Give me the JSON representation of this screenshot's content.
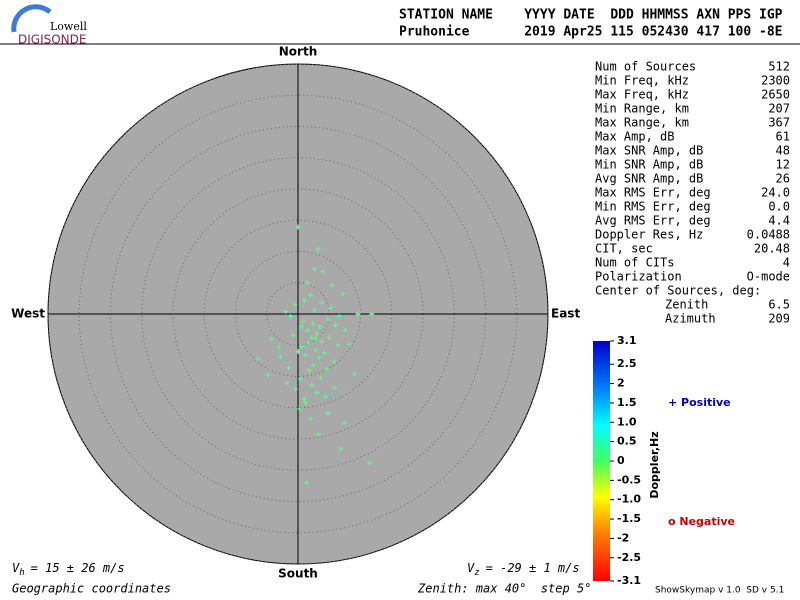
{
  "logo": {
    "top": "Lowell",
    "bottom": "DIGISONDE"
  },
  "header": {
    "line1": "STATION NAME    YYYY DATE  DDD HHMMSS AXN PPS IGP",
    "line2": "Pruhonice       2019 Apr25 115 052430 417 100 -8E"
  },
  "stats": [
    [
      "Num of Sources",
      "512"
    ],
    [
      "Min Freq, kHz",
      "2300"
    ],
    [
      "Max Freq, kHz",
      "2650"
    ],
    [
      "Min Range, km",
      "207"
    ],
    [
      "Max Range, km",
      "367"
    ],
    [
      "Max Amp, dB",
      "61"
    ],
    [
      "Max SNR Amp, dB",
      "48"
    ],
    [
      "Min SNR Amp, dB",
      "12"
    ],
    [
      "Avg SNR Amp, dB",
      "26"
    ],
    [
      "Max RMS Err, deg",
      "24.0"
    ],
    [
      "Min RMS Err, deg",
      "0.0"
    ],
    [
      "Avg RMS Err, deg",
      "4.4"
    ],
    [
      "Doppler Res, Hz",
      "0.0488"
    ],
    [
      "CIT, sec",
      "20.48"
    ],
    [
      "Num of CITs",
      "4"
    ],
    [
      "Polarization",
      "O-mode"
    ]
  ],
  "center": {
    "title": "Center of Sources, deg:",
    "rows": [
      [
        "Zenith",
        "6.5"
      ],
      [
        "Azimuth",
        "209"
      ]
    ]
  },
  "legend": {
    "positive": "+ Positive",
    "negative": "o Negative"
  },
  "footer": {
    "vh": {
      "symbol": "V",
      "sub": "h",
      "text": "= 15 ± 26 m/s"
    },
    "vz": {
      "symbol": "V",
      "sub": "z",
      "text": "= -29 ± 1 m/s"
    },
    "coords": "Geographic coordinates",
    "zenith": "Zenith: max 40°  step 5°",
    "version": "ShowSkymap v 1.0  SD v 5.1"
  },
  "chart_data": {
    "type": "scatter",
    "directions": {
      "north": "North",
      "south": "South",
      "east": "East",
      "west": "West"
    },
    "rlim": [
      0,
      40
    ],
    "rticks": [
      5,
      10,
      15,
      20,
      25,
      30,
      35,
      40
    ],
    "color": "#5cff8a",
    "x": [
      0.0,
      3.2,
      2.6,
      1.5,
      4.0,
      5.5,
      7.2,
      2.0,
      1.0,
      -0.5,
      -1.2,
      -2.0,
      0.8,
      2.4,
      3.5,
      4.8,
      6.0,
      3.0,
      2.2,
      1.6,
      0.6,
      -0.8,
      1.2,
      2.8,
      3.8,
      5.0,
      4.2,
      3.4,
      2.5,
      1.8,
      0.4,
      -1.5,
      -3.0,
      -4.8,
      -6.4,
      9.6,
      11.8,
      7.6,
      6.4,
      5.8,
      4.6,
      3.6,
      2.2,
      1.0,
      0.2,
      -0.4,
      -1.8,
      -2.8,
      -4.2,
      2.6,
      3.8,
      5.2,
      6.6,
      8.2,
      9.0,
      1.6,
      0.0,
      1.2,
      3.0,
      4.4,
      5.8,
      7.4,
      2.0,
      3.2,
      4.8,
      6.8,
      11.4,
      1.4,
      0.6,
      2.8
    ],
    "y": [
      13.9,
      10.4,
      7.2,
      5.0,
      6.8,
      4.6,
      3.2,
      3.0,
      2.2,
      1.5,
      -0.4,
      0.4,
      -1.2,
      -1.6,
      -2.0,
      -0.8,
      -1.8,
      -3.2,
      -3.8,
      -4.6,
      -5.2,
      -3.4,
      -6.6,
      -5.8,
      -4.4,
      -3.8,
      -6.2,
      -7.0,
      -8.2,
      -9.0,
      -10.4,
      -8.6,
      -5.4,
      -9.8,
      -7.2,
      0.0,
      0.0,
      -2.6,
      -5.0,
      -7.6,
      -8.8,
      -10.2,
      -11.4,
      -13.6,
      -15.2,
      -12.0,
      -11.0,
      -6.8,
      -4.0,
      0.6,
      1.8,
      1.0,
      -0.4,
      -4.8,
      -9.6,
      -2.6,
      -6.0,
      -14.2,
      -12.6,
      -13.2,
      -11.8,
      -17.4,
      -16.8,
      -19.2,
      -15.8,
      -21.6,
      -23.8,
      -27.0,
      -2.0,
      -4.0
    ],
    "colorbar": {
      "label": "Doppler,Hz",
      "lim": [
        -3.1,
        3.1
      ],
      "ticks": [
        3.1,
        2.5,
        2,
        1.5,
        {
          "value": 1,
          "label": "1.0"
        },
        0.5,
        0,
        -0.5,
        {
          "value": -1,
          "label": "-1.0"
        },
        -1.5,
        -2,
        -2.5,
        -3.1
      ]
    }
  }
}
